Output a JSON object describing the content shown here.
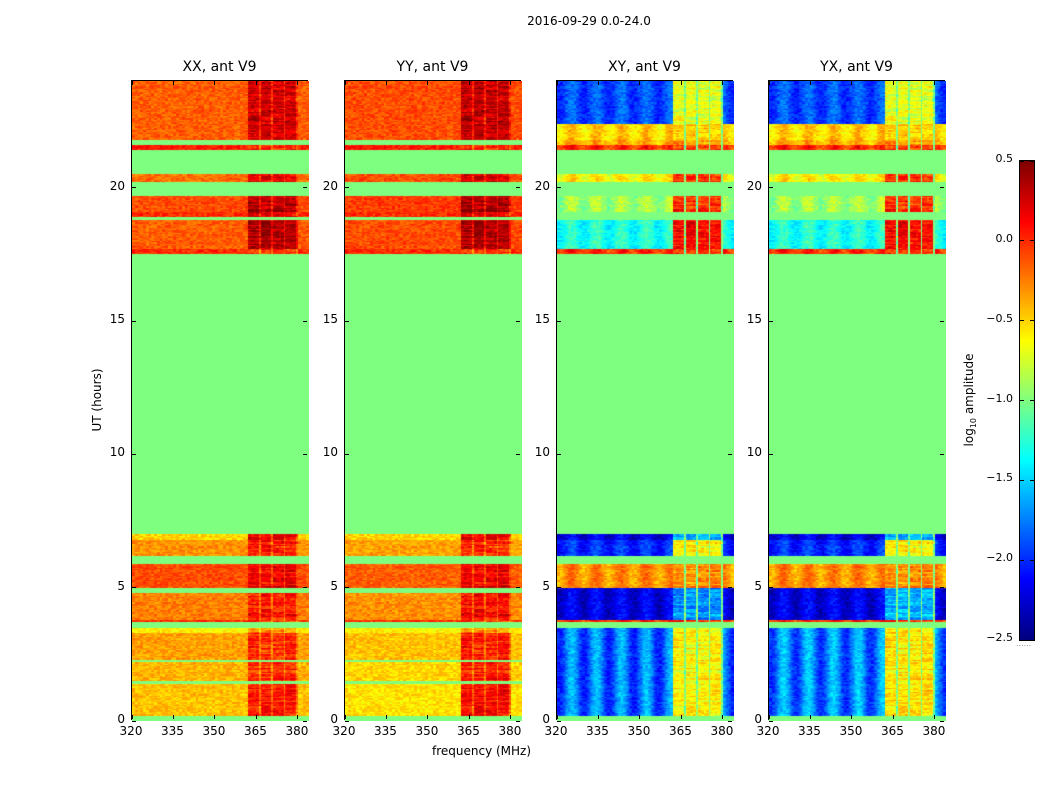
{
  "suptitle": "2016-09-29 0.0-24.0",
  "xlabel": "frequency (MHz)",
  "ylabel": "UT (hours)",
  "colorbar": {
    "label_main": "log",
    "label_sub": "10",
    "label_rest": " amplitude",
    "range": [
      -2.5,
      0.5
    ],
    "ticks": [
      0.5,
      0.0,
      -0.5,
      -1.0,
      -1.5,
      -2.0,
      -2.5
    ],
    "tick_labels": [
      "0.5",
      "0.0",
      "−0.5",
      "−1.0",
      "−1.5",
      "−2.0",
      "−2.5"
    ],
    "colormap": "jet",
    "footer": "......"
  },
  "chart_data": [
    {
      "type": "heatmap",
      "title": "XX, ant V9",
      "xlim": [
        320,
        384
      ],
      "ylim": [
        0,
        24
      ],
      "xticks": [
        320,
        335,
        350,
        365,
        380
      ],
      "yticks": [
        0,
        5,
        10,
        15,
        20
      ],
      "flag_value": -1.0,
      "high_band_MHz": [
        362,
        380
      ],
      "bands": [
        [
          0,
          0.2,
          -1,
          -1
        ],
        [
          0.2,
          1.4,
          -0.45,
          0.05
        ],
        [
          1.4,
          1.5,
          -1,
          -1
        ],
        [
          1.5,
          2.2,
          -0.4,
          0.0
        ],
        [
          2.2,
          2.3,
          -1,
          -1
        ],
        [
          2.3,
          3.3,
          -0.35,
          0.0
        ],
        [
          3.3,
          3.5,
          -0.6,
          -0.3
        ],
        [
          3.5,
          3.7,
          -1,
          -1
        ],
        [
          3.7,
          3.8,
          0.0,
          0.0
        ],
        [
          3.8,
          4.8,
          -0.25,
          0.05
        ],
        [
          4.8,
          5.0,
          -1,
          -1
        ],
        [
          5.0,
          5.9,
          -0.1,
          0.15
        ],
        [
          5.9,
          6.2,
          -1,
          -1
        ],
        [
          6.2,
          6.8,
          -0.3,
          0.05
        ],
        [
          6.8,
          7.0,
          -0.5,
          0.2
        ],
        [
          7.0,
          17.5,
          -1,
          -1
        ],
        [
          17.5,
          17.7,
          0,
          0
        ],
        [
          17.7,
          18.8,
          -0.15,
          0.35
        ],
        [
          18.8,
          18.9,
          -1,
          -1
        ],
        [
          18.9,
          19.1,
          0,
          0.2
        ],
        [
          19.1,
          19.7,
          -0.1,
          0.35
        ],
        [
          19.7,
          20.2,
          -1,
          -1
        ],
        [
          20.2,
          20.5,
          -0.2,
          0.2
        ],
        [
          20.5,
          21.4,
          -1,
          -1
        ],
        [
          21.4,
          21.6,
          0.05,
          0.1
        ],
        [
          21.6,
          21.8,
          -1,
          -1
        ],
        [
          21.8,
          24,
          -0.15,
          0.25
        ]
      ]
    },
    {
      "type": "heatmap",
      "title": "YY, ant V9",
      "xlim": [
        320,
        384
      ],
      "ylim": [
        0,
        24
      ],
      "xticks": [
        320,
        335,
        350,
        365,
        380
      ],
      "yticks": [
        0,
        5,
        10,
        15,
        20
      ],
      "flag_value": -1.0,
      "high_band_MHz": [
        362,
        380
      ],
      "bands": [
        [
          0,
          0.2,
          -1,
          -1
        ],
        [
          0.2,
          1.4,
          -0.55,
          0.1
        ],
        [
          1.4,
          1.5,
          -1,
          -1
        ],
        [
          1.5,
          2.2,
          -0.5,
          0.05
        ],
        [
          2.2,
          2.3,
          -1,
          -1
        ],
        [
          2.3,
          3.3,
          -0.45,
          0.05
        ],
        [
          3.3,
          3.5,
          -0.6,
          -0.3
        ],
        [
          3.5,
          3.7,
          -1,
          -1
        ],
        [
          3.7,
          3.8,
          0.0,
          0.0
        ],
        [
          3.8,
          4.8,
          -0.3,
          0.1
        ],
        [
          4.8,
          5.0,
          -1,
          -1
        ],
        [
          5.0,
          5.9,
          -0.15,
          0.15
        ],
        [
          5.9,
          6.2,
          -1,
          -1
        ],
        [
          6.2,
          6.8,
          -0.35,
          0.0
        ],
        [
          6.8,
          7.0,
          -0.5,
          0.2
        ],
        [
          7.0,
          17.5,
          -1,
          -1
        ],
        [
          17.5,
          17.7,
          0,
          0
        ],
        [
          17.7,
          18.8,
          -0.1,
          0.35
        ],
        [
          18.8,
          18.9,
          -1,
          -1
        ],
        [
          18.9,
          19.1,
          0,
          0.2
        ],
        [
          19.1,
          19.7,
          -0.05,
          0.4
        ],
        [
          19.7,
          20.2,
          -1,
          -1
        ],
        [
          20.2,
          20.5,
          -0.1,
          0.25
        ],
        [
          20.5,
          21.4,
          -1,
          -1
        ],
        [
          21.4,
          21.6,
          0.05,
          0.1
        ],
        [
          21.6,
          21.8,
          -1,
          -1
        ],
        [
          21.8,
          24,
          -0.1,
          0.3
        ]
      ]
    },
    {
      "type": "heatmap",
      "title": "XY, ant V9",
      "xlim": [
        320,
        384
      ],
      "ylim": [
        0,
        24
      ],
      "xticks": [
        320,
        335,
        350,
        365,
        380
      ],
      "yticks": [
        0,
        5,
        10,
        15,
        20
      ],
      "flag_value": -1.0,
      "high_band_MHz": [
        362,
        380
      ],
      "bands": [
        [
          0,
          0.2,
          -1,
          -1
        ],
        [
          0.2,
          3.5,
          -1.8,
          -0.6
        ],
        [
          3.5,
          3.7,
          -1,
          -1
        ],
        [
          3.7,
          3.8,
          0,
          0
        ],
        [
          3.8,
          5.0,
          -2.2,
          -1.7
        ],
        [
          5.0,
          5.9,
          -0.3,
          -0.3
        ],
        [
          5.9,
          6.2,
          -1,
          -1
        ],
        [
          6.2,
          6.8,
          -2.0,
          -0.6
        ],
        [
          6.8,
          7.0,
          -2.2,
          -1.6
        ],
        [
          7,
          17.5,
          -1,
          -1
        ],
        [
          17.5,
          17.7,
          0,
          0
        ],
        [
          17.7,
          18.8,
          -1.3,
          0.1
        ],
        [
          18.8,
          19.1,
          -1,
          -1
        ],
        [
          19.1,
          19.7,
          -0.9,
          0.0
        ],
        [
          19.7,
          20.2,
          -1,
          -1
        ],
        [
          20.2,
          20.5,
          -0.6,
          0.0
        ],
        [
          20.5,
          21.4,
          -1,
          -1
        ],
        [
          21.4,
          21.6,
          0,
          0
        ],
        [
          21.6,
          21.8,
          -0.4,
          -0.4
        ],
        [
          21.8,
          22.4,
          -0.5,
          -0.5
        ],
        [
          22.4,
          24,
          -1.9,
          -0.7
        ]
      ]
    },
    {
      "type": "heatmap",
      "title": "YX, ant V9",
      "xlim": [
        320,
        384
      ],
      "ylim": [
        0,
        24
      ],
      "xticks": [
        320,
        335,
        350,
        365,
        380
      ],
      "yticks": [
        0,
        5,
        10,
        15,
        20
      ],
      "flag_value": -1.0,
      "high_band_MHz": [
        362,
        380
      ],
      "bands": [
        [
          0,
          0.2,
          -1,
          -1
        ],
        [
          0.2,
          3.5,
          -1.75,
          -0.55
        ],
        [
          3.5,
          3.7,
          -1,
          -1
        ],
        [
          3.7,
          3.8,
          0,
          0
        ],
        [
          3.8,
          5.0,
          -2.2,
          -1.6
        ],
        [
          5.0,
          5.9,
          -0.3,
          -0.3
        ],
        [
          5.9,
          6.2,
          -1,
          -1
        ],
        [
          6.2,
          6.8,
          -2.0,
          -0.6
        ],
        [
          6.8,
          7.0,
          -2.2,
          -1.6
        ],
        [
          7,
          17.5,
          -1,
          -1
        ],
        [
          17.5,
          17.7,
          0,
          0
        ],
        [
          17.7,
          18.8,
          -1.3,
          0.1
        ],
        [
          18.8,
          19.1,
          -1,
          -1
        ],
        [
          19.1,
          19.7,
          -0.9,
          0.0
        ],
        [
          19.7,
          20.2,
          -1,
          -1
        ],
        [
          20.2,
          20.5,
          -0.6,
          0.0
        ],
        [
          20.5,
          21.4,
          -1,
          -1
        ],
        [
          21.4,
          21.6,
          0,
          0
        ],
        [
          21.6,
          21.8,
          -0.4,
          -0.4
        ],
        [
          21.8,
          22.4,
          -0.5,
          -0.5
        ],
        [
          22.4,
          24,
          -1.9,
          -0.7
        ]
      ]
    }
  ]
}
